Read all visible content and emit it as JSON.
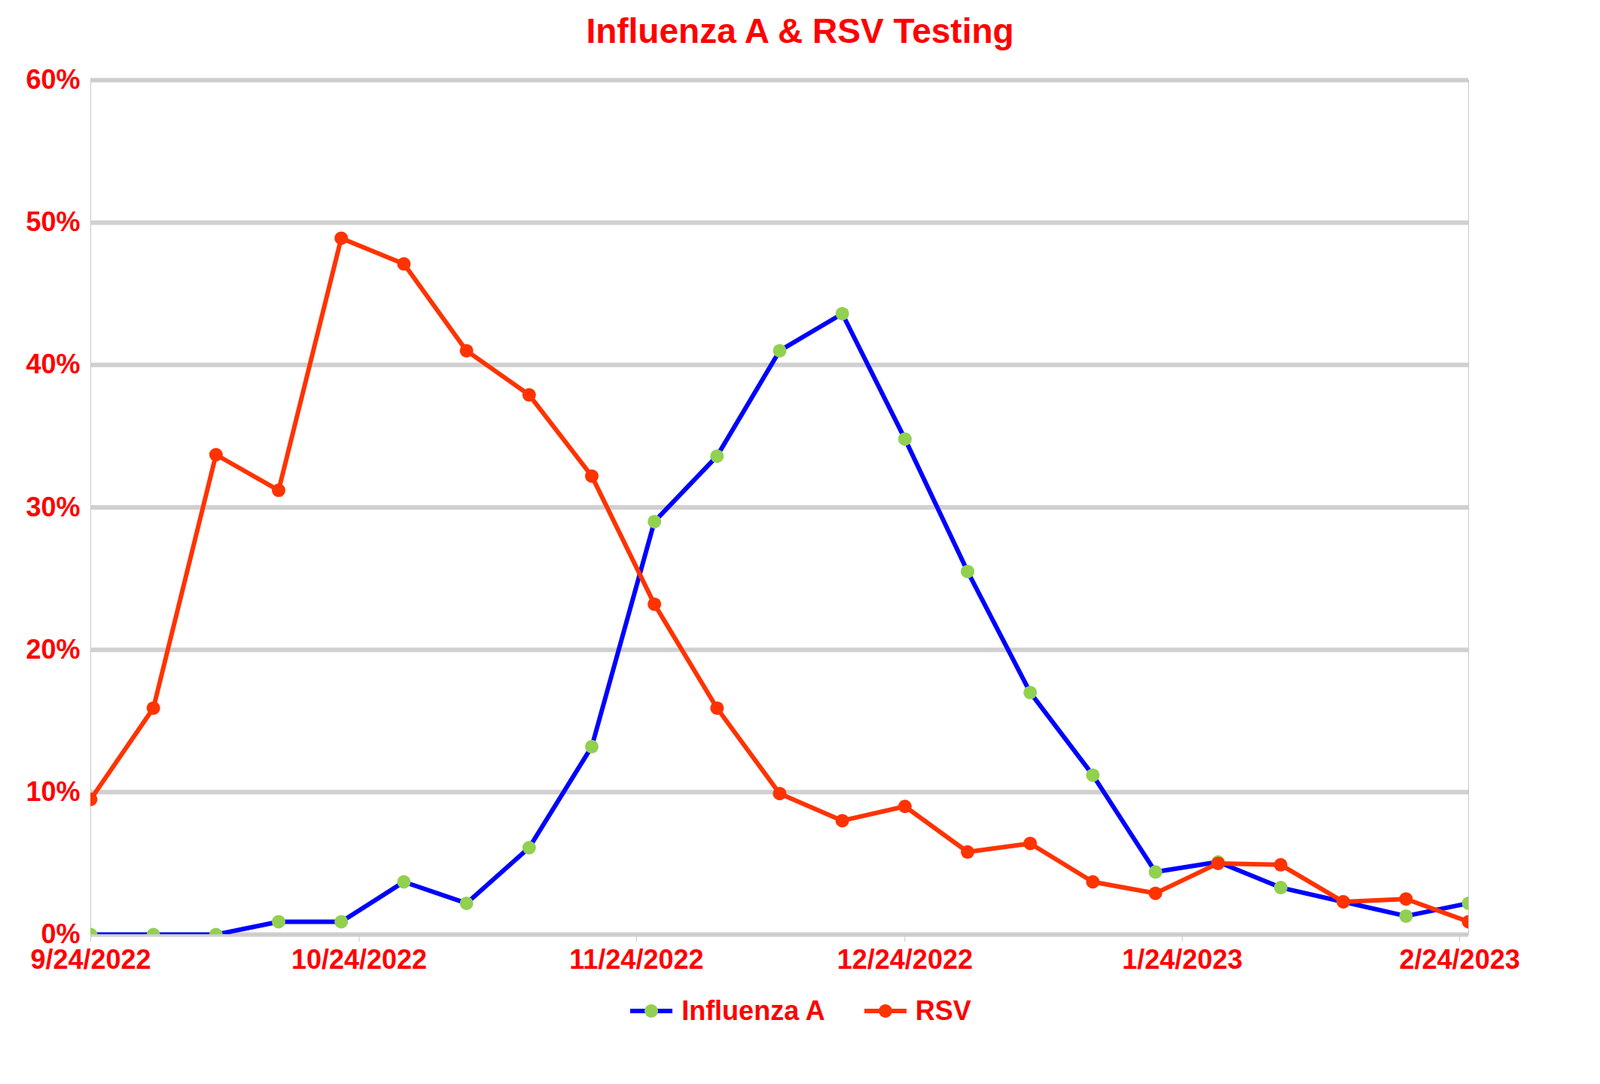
{
  "chart_data": {
    "type": "line",
    "title": "Influenza A & RSV Testing",
    "x": [
      "2022-09-24",
      "2022-10-01",
      "2022-10-08",
      "2022-10-15",
      "2022-10-22",
      "2022-10-29",
      "2022-11-05",
      "2022-11-12",
      "2022-11-19",
      "2022-11-26",
      "2022-12-03",
      "2022-12-10",
      "2022-12-17",
      "2022-12-24",
      "2022-12-31",
      "2023-01-07",
      "2023-01-14",
      "2023-01-21",
      "2023-01-28",
      "2023-02-04",
      "2023-02-11",
      "2023-02-18",
      "2023-02-25"
    ],
    "series": [
      {
        "name": "Influenza A",
        "color": "#0000ff",
        "marker": "circle",
        "line_style": "solid",
        "values": [
          0,
          0,
          0,
          0.9,
          0.9,
          3.7,
          2.2,
          6.1,
          13.2,
          29.0,
          33.6,
          41.0,
          43.6,
          34.8,
          25.5,
          17.0,
          11.2,
          4.4,
          5.1,
          3.3,
          2.3,
          1.3,
          2.2
        ]
      },
      {
        "name": "RSV",
        "color": "#ff3300",
        "marker": "circle",
        "line_style": "solid",
        "values": [
          9.5,
          15.9,
          33.7,
          31.2,
          48.9,
          47.1,
          41.0,
          37.9,
          32.2,
          23.2,
          15.9,
          9.9,
          8.0,
          9.0,
          5.8,
          6.4,
          3.7,
          2.9,
          5.0,
          4.9,
          2.3,
          2.5,
          0.9
        ]
      }
    ],
    "xlim": [
      "2022-09-24",
      "2023-02-25"
    ],
    "xticks": [
      {
        "value": "2022-09-24",
        "label": "9/24/2022"
      },
      {
        "value": "2022-10-24",
        "label": "10/24/2022"
      },
      {
        "value": "2022-11-24",
        "label": "11/24/2022"
      },
      {
        "value": "2022-12-24",
        "label": "12/24/2022"
      },
      {
        "value": "2023-01-24",
        "label": "1/24/2023"
      },
      {
        "value": "2023-02-24",
        "label": "2/24/2023"
      }
    ],
    "ylim": [
      0,
      60
    ],
    "yticks": [
      {
        "value": 0,
        "label": "0%"
      },
      {
        "value": 10,
        "label": "10%"
      },
      {
        "value": 20,
        "label": "20%"
      },
      {
        "value": 30,
        "label": "30%"
      },
      {
        "value": 40,
        "label": "40%"
      },
      {
        "value": 50,
        "label": "50%"
      },
      {
        "value": 60,
        "label": "60%"
      }
    ],
    "grid": true,
    "legend": "bottom"
  }
}
